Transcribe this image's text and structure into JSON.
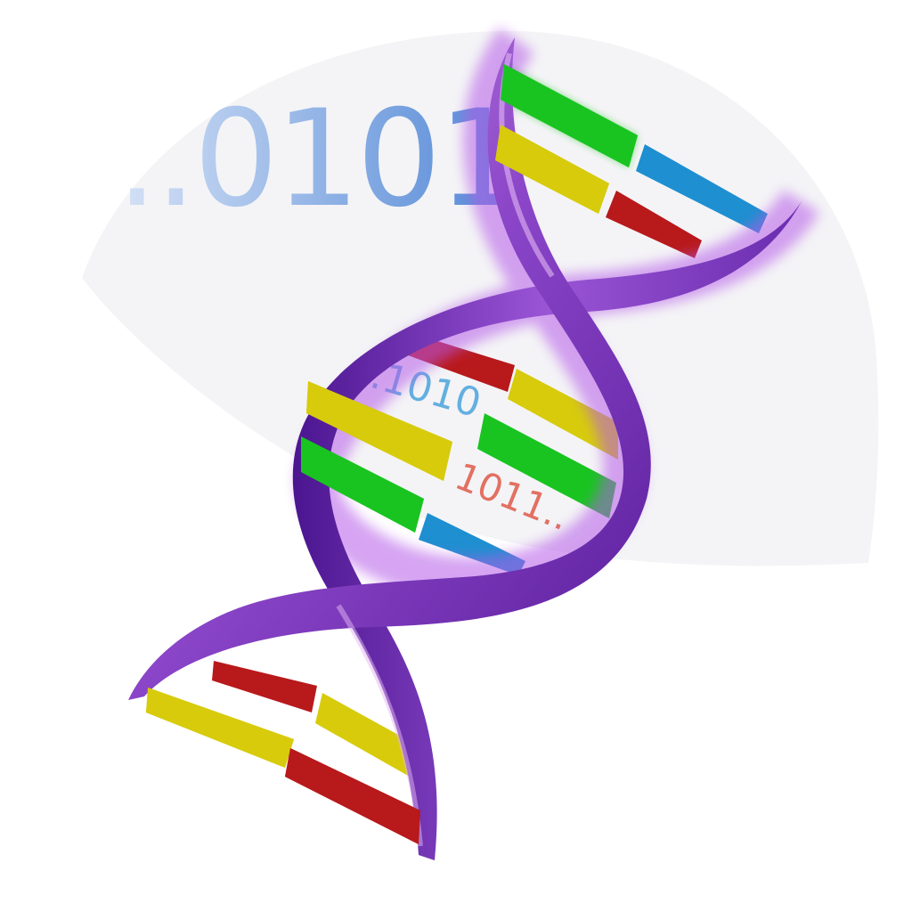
{
  "illustration": {
    "headline_digits": "..0101",
    "inner_digits_top": "..1010",
    "inner_digits_bottom": "1011..",
    "colors": {
      "headline_start": "#c9d8f1",
      "headline_end": "#4f86d6",
      "inner_top": "#4aa3dd",
      "inner_bottom": "#e05a4a",
      "backbone_light": "#c48be3",
      "backbone_dark": "#5b1f9e",
      "halo": "#f4f4f6",
      "base_green": "#12c41a",
      "base_yellow": "#d7cb0c",
      "base_red": "#b8191b",
      "base_blue": "#1e8fd0"
    },
    "icon": "dna-double-helix-icon"
  }
}
